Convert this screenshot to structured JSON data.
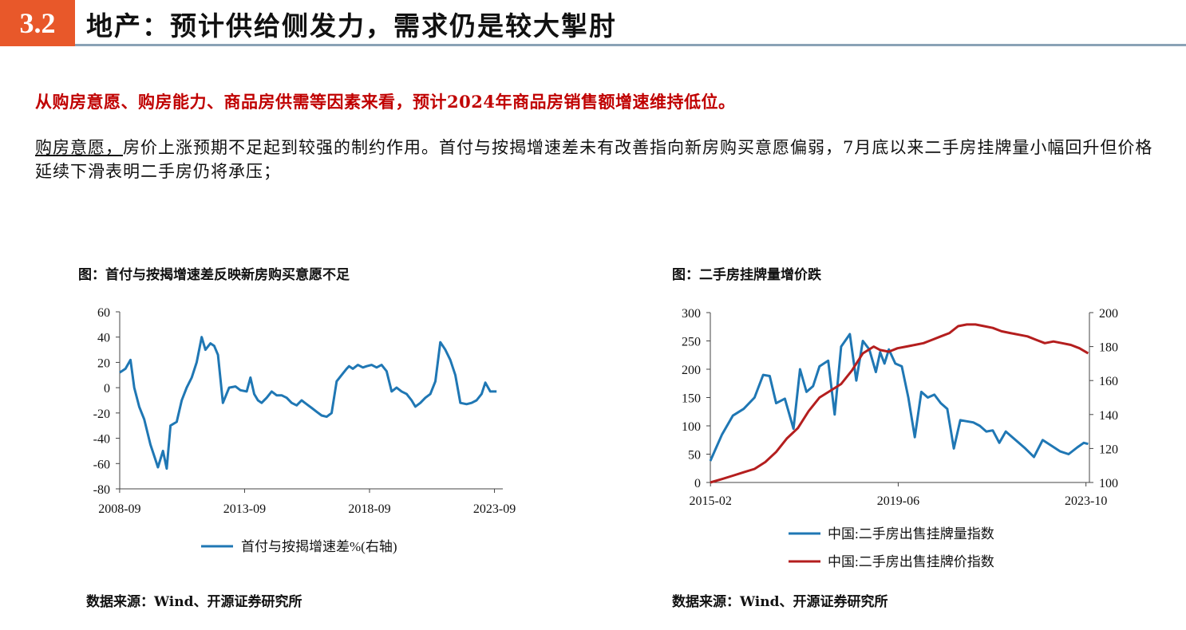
{
  "header": {
    "section_number": "3.2",
    "title": "地产：预计供给侧发力，需求仍是较大掣肘"
  },
  "lead": "从购房意愿、购房能力、商品房供需等因素来看，预计2024年商品房销售额增速维持低位。",
  "paragraph": {
    "underlined": "购房意愿，",
    "text": "房价上涨预期不足起到较强的制约作用。首付与按揭增速差未有改善指向新房购买意愿偏弱，7月底以来二手房挂牌量小幅回升但价格延续下滑表明二手房仍将承压；"
  },
  "figures": [
    {
      "title": "图：首付与按揭增速差反映新房购买意愿不足",
      "source": "数据来源：Wind、开源证券研究所"
    },
    {
      "title": "图：二手房挂牌量增价跌",
      "source": "数据来源：Wind、开源证券研究所"
    }
  ],
  "colors": {
    "accent": "#e8582a",
    "lead_text": "#c00000",
    "header_rule": "#8aa2b6",
    "blue": "#1f77b4",
    "red": "#b41e1e"
  },
  "chart_data": [
    {
      "type": "line",
      "xticks": [
        "2008-09",
        "2013-09",
        "2018-09",
        "2023-09"
      ],
      "ylim": [
        -80,
        60
      ],
      "yticks": [
        -80,
        -60,
        -40,
        -20,
        0,
        20,
        40,
        60
      ],
      "series": [
        {
          "name": "首付与按揭增速差%(右轴)",
          "color": "#1f77b4",
          "x": [
            2008.67,
            2008.9,
            2009.1,
            2009.25,
            2009.45,
            2009.65,
            2009.9,
            2010.1,
            2010.2,
            2010.4,
            2010.55,
            2010.7,
            2010.95,
            2011.15,
            2011.35,
            2011.55,
            2011.75,
            2011.95,
            2012.1,
            2012.3,
            2012.45,
            2012.6,
            2012.8,
            2013.05,
            2013.3,
            2013.5,
            2013.75,
            2013.9,
            2014.05,
            2014.2,
            2014.35,
            2014.55,
            2014.75,
            2014.95,
            2015.15,
            2015.35,
            2015.55,
            2015.75,
            2015.95,
            2016.15,
            2016.35,
            2016.55,
            2016.75,
            2016.95,
            2017.15,
            2017.35,
            2017.55,
            2017.75,
            2017.85,
            2018.0,
            2018.2,
            2018.4,
            2018.55,
            2018.75,
            2018.95,
            2019.15,
            2019.35,
            2019.55,
            2019.75,
            2019.95,
            2020.15,
            2020.35,
            2020.5,
            2020.7,
            2020.9,
            2021.1,
            2021.3,
            2021.5,
            2021.7,
            2021.9,
            2022.1,
            2022.3,
            2022.55,
            2022.75,
            2022.95,
            2023.15,
            2023.3,
            2023.5,
            2023.75
          ],
          "y": [
            12,
            15,
            22,
            0,
            -15,
            -25,
            -45,
            -57,
            -63,
            -50,
            -64,
            -30,
            -27,
            -10,
            0,
            8,
            20,
            40,
            30,
            35,
            33,
            26,
            -12,
            0,
            1,
            -2,
            -3,
            8,
            -5,
            -10,
            -12,
            -8,
            -3,
            -6,
            -6,
            -8,
            -12,
            -14,
            -10,
            -13,
            -16,
            -19,
            -22,
            -23,
            -20,
            5,
            10,
            15,
            17,
            15,
            18,
            16,
            17,
            18,
            16,
            18,
            13,
            -3,
            0,
            -3,
            -5,
            -10,
            -15,
            -12,
            -8,
            -5,
            5,
            36,
            30,
            22,
            10,
            -12,
            -13,
            -12,
            -10,
            -5,
            4,
            -3,
            -3
          ]
        }
      ]
    },
    {
      "type": "line",
      "xticks": [
        "2015-02",
        "2019-06",
        "2023-10"
      ],
      "ylim": [
        0,
        300
      ],
      "yticks": [
        0,
        50,
        100,
        150,
        200,
        250,
        300
      ],
      "y2lim": [
        100,
        200
      ],
      "y2ticks": [
        100,
        120,
        140,
        160,
        180,
        200
      ],
      "series": [
        {
          "name": "中国:二手房出售挂牌量指数",
          "color": "#1f77b4",
          "axis": "left",
          "x": [
            2015.08,
            2015.35,
            2015.6,
            2015.85,
            2016.1,
            2016.3,
            2016.45,
            2016.6,
            2016.8,
            2017.0,
            2017.15,
            2017.3,
            2017.45,
            2017.6,
            2017.8,
            2017.95,
            2018.1,
            2018.3,
            2018.45,
            2018.6,
            2018.75,
            2018.9,
            2019.0,
            2019.1,
            2019.2,
            2019.35,
            2019.5,
            2019.65,
            2019.8,
            2019.95,
            2020.1,
            2020.25,
            2020.4,
            2020.55,
            2020.7,
            2020.85,
            2021.0,
            2021.15,
            2021.3,
            2021.45,
            2021.6,
            2021.75,
            2021.9,
            2022.05,
            2022.2,
            2022.35,
            2022.55,
            2022.75,
            2022.95,
            2023.15,
            2023.35,
            2023.55,
            2023.7,
            2023.8
          ],
          "y": [
            38,
            85,
            118,
            130,
            150,
            190,
            188,
            140,
            148,
            95,
            200,
            160,
            170,
            205,
            215,
            120,
            240,
            262,
            180,
            250,
            235,
            195,
            230,
            210,
            235,
            210,
            205,
            150,
            80,
            160,
            150,
            155,
            140,
            130,
            60,
            110,
            108,
            106,
            100,
            90,
            92,
            70,
            90,
            80,
            70,
            60,
            45,
            75,
            65,
            55,
            50,
            62,
            70,
            68
          ]
        },
        {
          "name": "中国:二手房出售挂牌价指数",
          "color": "#b41e1e",
          "axis": "right",
          "x": [
            2015.08,
            2015.35,
            2015.6,
            2015.85,
            2016.1,
            2016.35,
            2016.6,
            2016.85,
            2017.1,
            2017.35,
            2017.6,
            2017.85,
            2018.1,
            2018.35,
            2018.6,
            2018.85,
            2019.0,
            2019.2,
            2019.4,
            2019.6,
            2019.8,
            2020.0,
            2020.2,
            2020.4,
            2020.6,
            2020.8,
            2021.0,
            2021.2,
            2021.4,
            2021.6,
            2021.8,
            2022.0,
            2022.2,
            2022.4,
            2022.6,
            2022.8,
            2023.0,
            2023.2,
            2023.4,
            2023.6,
            2023.8
          ],
          "y": [
            100,
            102,
            104,
            106,
            108,
            112,
            118,
            126,
            132,
            142,
            150,
            154,
            158,
            166,
            176,
            180,
            178,
            177,
            179,
            180,
            181,
            182,
            184,
            186,
            188,
            192,
            193,
            193,
            192,
            191,
            189,
            188,
            187,
            186,
            184,
            182,
            183,
            182,
            181,
            179,
            176
          ]
        }
      ]
    }
  ]
}
